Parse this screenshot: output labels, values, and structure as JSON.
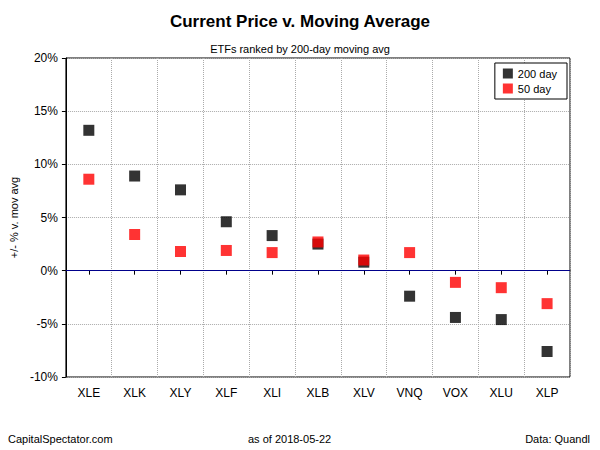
{
  "chart_data": {
    "type": "scatter",
    "title": "Current Price v. Moving Average",
    "subtitle": "ETFs ranked by 200-day moving avg",
    "y_label": "+/- % v. mov avg",
    "categories": [
      "XLE",
      "XLK",
      "XLY",
      "XLF",
      "XLI",
      "XLB",
      "XLV",
      "VNQ",
      "VOX",
      "XLU",
      "XLP"
    ],
    "series": [
      {
        "name": "200 day",
        "color": "#000000",
        "marker": "square",
        "values": [
          13.2,
          8.9,
          7.6,
          4.6,
          3.3,
          2.5,
          0.8,
          -2.4,
          -4.4,
          -4.6,
          -7.6
        ]
      },
      {
        "name": "50 day",
        "color": "#ff0000",
        "marker": "square",
        "values": [
          8.6,
          3.4,
          1.8,
          1.9,
          1.7,
          2.7,
          1.0,
          1.7,
          -1.1,
          -1.6,
          -3.1
        ]
      }
    ],
    "ylim": [
      -10,
      20
    ],
    "yticks": [
      {
        "value": -10,
        "label": "-10%"
      },
      {
        "value": -5,
        "label": "-5%"
      },
      {
        "value": 0,
        "label": "0%"
      },
      {
        "value": 5,
        "label": "5%"
      },
      {
        "value": 10,
        "label": "10%"
      },
      {
        "value": 15,
        "label": "15%"
      },
      {
        "value": 20,
        "label": "20%"
      }
    ],
    "hline": 0,
    "grid": true,
    "legend": "top-right",
    "annotations": [
      "CapitalSpectator.com",
      "as of 2018-05-22",
      "Data: Quandl"
    ]
  }
}
